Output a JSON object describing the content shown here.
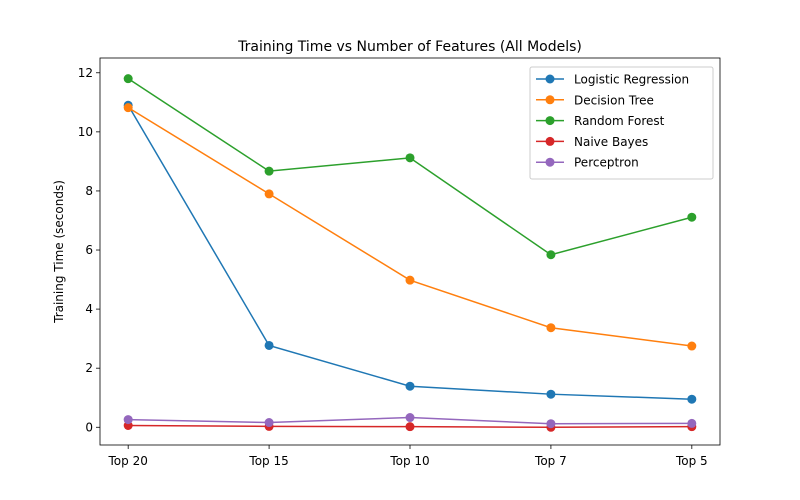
{
  "chart_data": {
    "type": "line",
    "title": "Training Time vs Number of Features (All Models)",
    "xlabel": "",
    "ylabel": "Training Time (seconds)",
    "categories": [
      "Top 20",
      "Top 15",
      "Top 10",
      "Top 7",
      "Top 5"
    ],
    "ylim": [
      -0.6,
      12.5
    ],
    "yticks": [
      0,
      2,
      4,
      6,
      8,
      10,
      12
    ],
    "grid": false,
    "legend": "top-right",
    "series": [
      {
        "name": "Logistic Regression",
        "color": "#1f77b4",
        "values": [
          10.9,
          2.77,
          1.39,
          1.12,
          0.95
        ]
      },
      {
        "name": "Decision Tree",
        "color": "#ff7f0e",
        "values": [
          10.82,
          7.9,
          4.98,
          3.37,
          2.75
        ]
      },
      {
        "name": "Random Forest",
        "color": "#2ca02c",
        "values": [
          11.8,
          8.67,
          9.12,
          5.84,
          7.11
        ]
      },
      {
        "name": "Naive Bayes",
        "color": "#d62728",
        "values": [
          0.06,
          0.03,
          0.02,
          0.0,
          0.02
        ]
      },
      {
        "name": "Perceptron",
        "color": "#9467bd",
        "values": [
          0.26,
          0.16,
          0.33,
          0.12,
          0.13
        ]
      }
    ]
  }
}
